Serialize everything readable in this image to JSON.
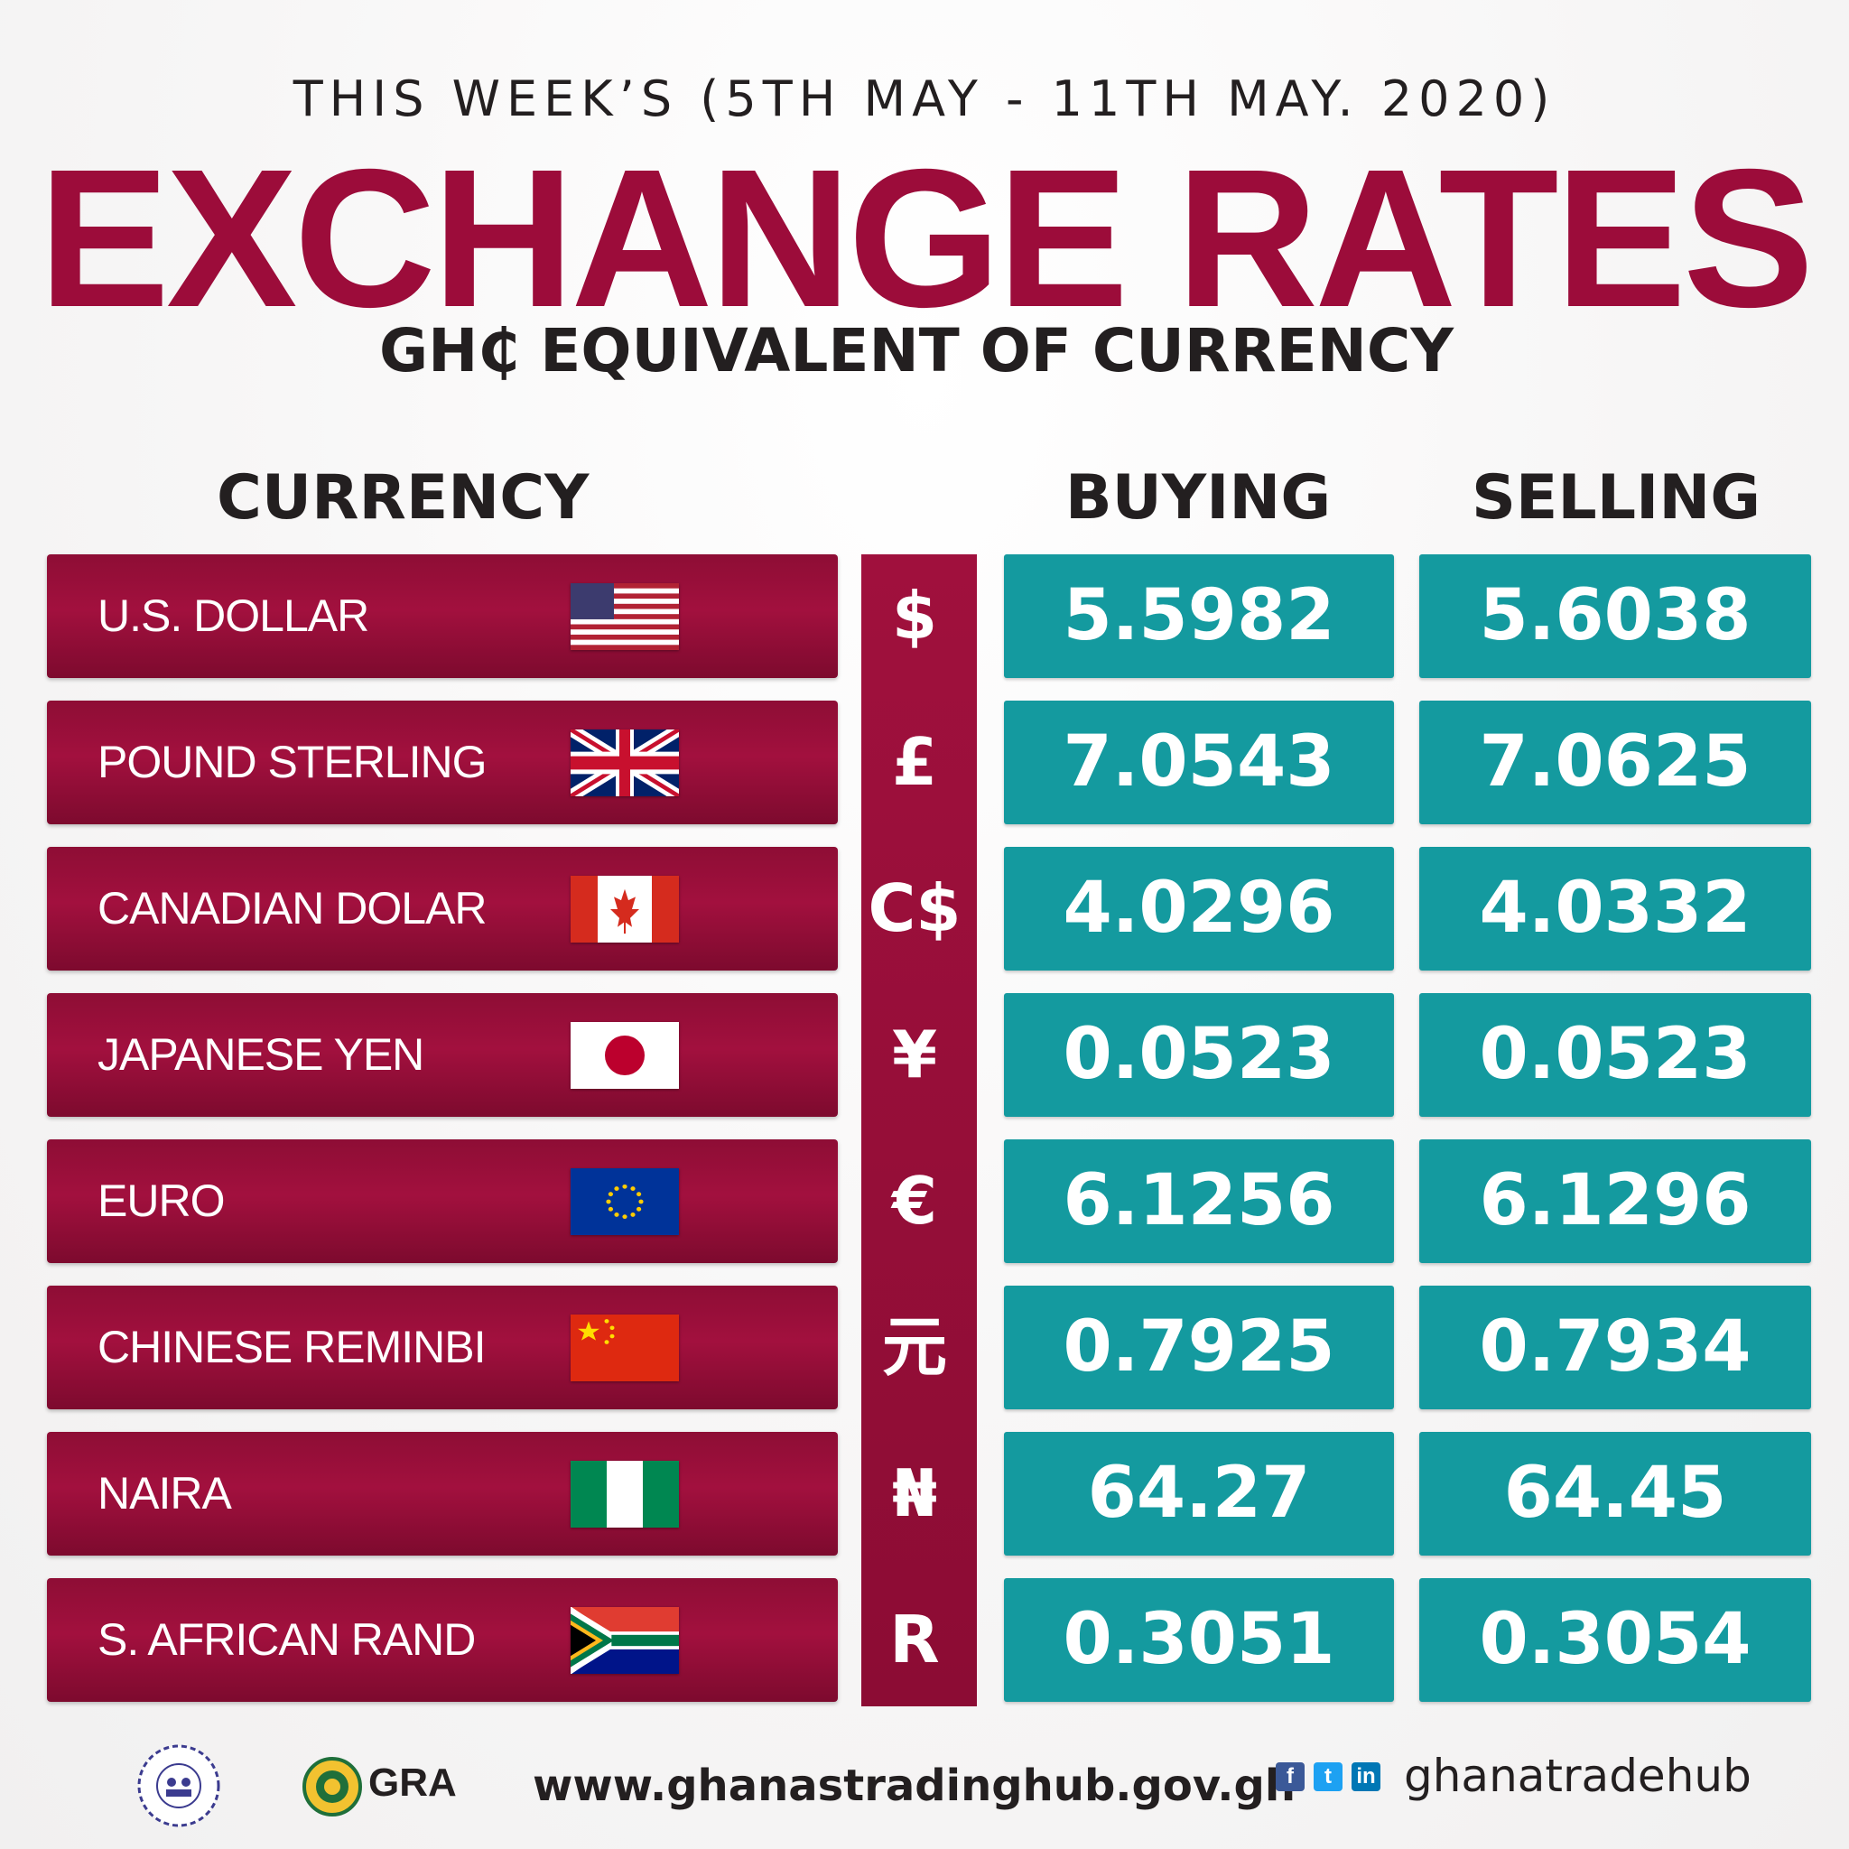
{
  "header": {
    "week": "THIS WEEK’S (5TH MAY - 11TH MAY. 2020)",
    "title": "EXCHANGE RATES",
    "subtitle": "GH₵ EQUIVALENT OF CURRENCY"
  },
  "columns": {
    "currency": "CURRENCY",
    "buying": "BUYING",
    "selling": "SELLING"
  },
  "rates": [
    {
      "name": "U.S. DOLLAR",
      "symbol": "$",
      "buying": "5.5982",
      "selling": "5.6038",
      "flag": "us-flag-icon"
    },
    {
      "name": "POUND STERLING",
      "symbol": "£",
      "buying": "7.0543",
      "selling": "7.0625",
      "flag": "uk-flag-icon"
    },
    {
      "name": "CANADIAN DOLAR",
      "symbol": "C$",
      "buying": "4.0296",
      "selling": "4.0332",
      "flag": "canada-flag-icon"
    },
    {
      "name": "JAPANESE YEN",
      "symbol": "¥",
      "buying": "0.0523",
      "selling": "0.0523",
      "flag": "japan-flag-icon"
    },
    {
      "name": "EURO",
      "symbol": "€",
      "buying": "6.1256",
      "selling": "6.1296",
      "flag": "eu-flag-icon"
    },
    {
      "name": "CHINESE REMINBI",
      "symbol": "元",
      "buying": "0.7925",
      "selling": "0.7934",
      "flag": "china-flag-icon"
    },
    {
      "name": "NAIRA",
      "symbol": "₦",
      "buying": "64.27",
      "selling": "64.45",
      "flag": "nigeria-flag-icon"
    },
    {
      "name": "S. AFRICAN RAND",
      "symbol": "R",
      "buying": "0.3051",
      "selling": "0.3054",
      "flag": "south-africa-flag-icon"
    }
  ],
  "footer": {
    "gra_label": "GRA",
    "website": "www.ghanastradinghub.gov.gh",
    "social_handle": "ghanatradehub",
    "social_icons": [
      "facebook-icon",
      "twitter-icon",
      "linkedin-icon"
    ]
  },
  "colors": {
    "title": "#9c0c3a",
    "name_box": "#9c0c3a",
    "value_box": "#149a9f",
    "text_dark": "#231f20"
  }
}
